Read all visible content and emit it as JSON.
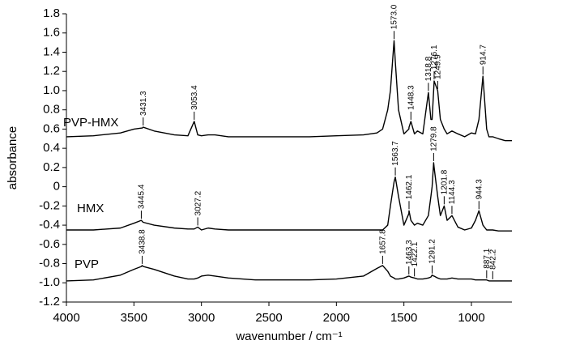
{
  "chart_data": {
    "type": "line",
    "x_label": "wavenumber / cm⁻¹",
    "y_label": "absorbance",
    "xlim": [
      4000,
      700
    ],
    "xticks": [
      4000,
      3500,
      3000,
      2500,
      2000,
      1500,
      1000
    ],
    "ylim": [
      -1.2,
      1.8
    ],
    "yticks": [
      1.8,
      1.6,
      1.4,
      1.2,
      {
        "value": 1,
        "label": "1.0"
      },
      0.8,
      0.6,
      0.4,
      0.2,
      0,
      -0.2,
      -0.4,
      -0.6,
      -0.8,
      {
        "value": -1,
        "label": "-1.0"
      },
      -1.2
    ],
    "grid": false,
    "x": [
      4000,
      3800,
      3600,
      3500,
      3445.4,
      3438.8,
      3431.3,
      3350,
      3200,
      3100,
      3053.4,
      3027.2,
      3000,
      2950,
      2900,
      2800,
      2600,
      2400,
      2200,
      2000,
      1800,
      1700,
      1657.8,
      1620,
      1600,
      1573,
      1563.7,
      1540,
      1500,
      1463.3,
      1462.1,
      1448.3,
      1422.1,
      1400,
      1360,
      1318.8,
      1300,
      1291.2,
      1279.8,
      1276.1,
      1249.9,
      1230,
      1201.8,
      1180,
      1144.3,
      1100,
      1050,
      1000,
      970,
      944.3,
      914.7,
      887.1,
      870,
      842.2,
      800,
      750,
      700
    ],
    "series": [
      {
        "name": "PVP-HMX",
        "color": "#000000",
        "values": [
          0.52,
          0.53,
          0.56,
          0.6,
          0.61,
          0.61,
          0.62,
          0.58,
          0.54,
          0.53,
          0.68,
          0.54,
          0.53,
          0.54,
          0.54,
          0.52,
          0.52,
          0.52,
          0.52,
          0.53,
          0.54,
          0.56,
          0.6,
          0.8,
          1.0,
          1.52,
          1.3,
          0.8,
          0.55,
          0.6,
          0.62,
          0.68,
          0.55,
          0.58,
          0.55,
          0.98,
          0.7,
          0.7,
          1.0,
          1.1,
          1.0,
          0.7,
          0.6,
          0.55,
          0.58,
          0.55,
          0.52,
          0.56,
          0.55,
          0.7,
          1.15,
          0.6,
          0.52,
          0.52,
          0.5,
          0.48,
          0.48
        ],
        "peaks": [
          3431.3,
          3053.4,
          {
            "value": 1573,
            "label": "1573.0"
          },
          1448.3,
          1318.8,
          1276.1,
          1249.9,
          914.7
        ]
      },
      {
        "name": "HMX",
        "color": "#000000",
        "values": [
          -0.45,
          -0.45,
          -0.43,
          -0.38,
          -0.35,
          -0.36,
          -0.37,
          -0.4,
          -0.43,
          -0.44,
          -0.44,
          -0.42,
          -0.45,
          -0.43,
          -0.44,
          -0.45,
          -0.45,
          -0.45,
          -0.45,
          -0.45,
          -0.45,
          -0.45,
          -0.45,
          -0.4,
          -0.2,
          0.05,
          0.1,
          -0.1,
          -0.4,
          -0.28,
          -0.25,
          -0.35,
          -0.4,
          -0.38,
          -0.4,
          -0.3,
          -0.1,
          0.0,
          0.25,
          0.2,
          -0.1,
          -0.3,
          -0.2,
          -0.35,
          -0.3,
          -0.42,
          -0.45,
          -0.43,
          -0.35,
          -0.25,
          -0.4,
          -0.45,
          -0.45,
          -0.45,
          -0.46,
          -0.46,
          -0.46
        ],
        "peaks": [
          3445.4,
          3027.2,
          1563.7,
          1462.1,
          1279.8,
          1201.8,
          1144.3,
          944.3
        ]
      },
      {
        "name": "PVP",
        "color": "#000000",
        "values": [
          -0.98,
          -0.97,
          -0.92,
          -0.86,
          -0.83,
          -0.82,
          -0.83,
          -0.86,
          -0.93,
          -0.96,
          -0.96,
          -0.95,
          -0.93,
          -0.92,
          -0.93,
          -0.95,
          -0.97,
          -0.97,
          -0.97,
          -0.96,
          -0.93,
          -0.85,
          -0.82,
          -0.88,
          -0.93,
          -0.95,
          -0.96,
          -0.96,
          -0.95,
          -0.93,
          -0.93,
          -0.94,
          -0.95,
          -0.96,
          -0.96,
          -0.95,
          -0.94,
          -0.92,
          -0.93,
          -0.93,
          -0.95,
          -0.96,
          -0.96,
          -0.96,
          -0.95,
          -0.96,
          -0.96,
          -0.96,
          -0.97,
          -0.97,
          -0.97,
          -0.97,
          -0.98,
          -0.98,
          -0.98,
          -0.98,
          -0.98
        ],
        "peaks": [
          3438.8,
          1657.8,
          1463.3,
          1422.1,
          1291.2,
          887.1,
          842.2
        ]
      }
    ]
  }
}
